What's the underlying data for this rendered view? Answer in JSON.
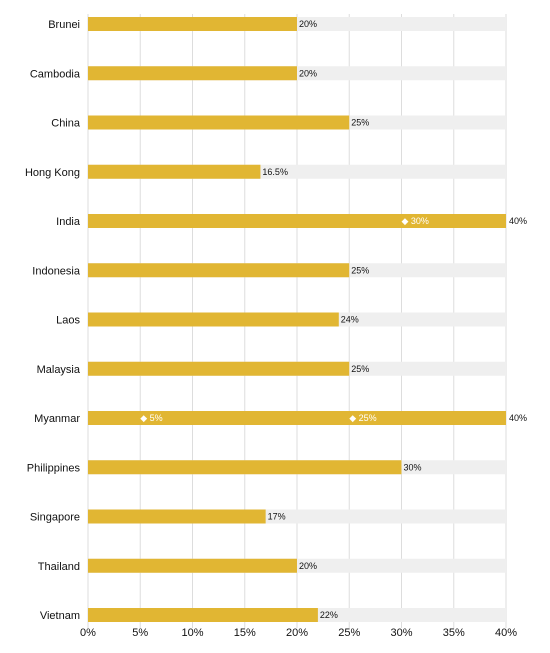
{
  "chart_data": {
    "type": "bar",
    "orientation": "horizontal",
    "title": "",
    "xlabel": "",
    "ylabel": "",
    "xlim": [
      0,
      40
    ],
    "grid": true,
    "legend": "none",
    "x_ticks": [
      "0%",
      "5%",
      "10%",
      "15%",
      "20%",
      "25%",
      "30%",
      "35%",
      "40%"
    ],
    "colors": {
      "bar": "#E1B633",
      "track": "#EFEFEF",
      "grid": "#DDDDDD",
      "annotation_text": "#FFFFFF"
    },
    "rows": [
      {
        "category": "Brunei",
        "value": 20,
        "label": "20%",
        "max": 40,
        "max_label": "",
        "annotations": []
      },
      {
        "category": "Cambodia",
        "value": 20,
        "label": "20%",
        "max": 40,
        "max_label": "",
        "annotations": []
      },
      {
        "category": "China",
        "value": 25,
        "label": "25%",
        "max": 40,
        "max_label": "",
        "annotations": []
      },
      {
        "category": "Hong Kong",
        "value": 16.5,
        "label": "16.5%",
        "max": 40,
        "max_label": "",
        "annotations": []
      },
      {
        "category": "India",
        "value": 40,
        "label": "",
        "max": 40,
        "max_label": "40%",
        "annotations": [
          {
            "value": 30,
            "label": "◆ 30%"
          }
        ]
      },
      {
        "category": "Indonesia",
        "value": 25,
        "label": "25%",
        "max": 40,
        "max_label": "",
        "annotations": []
      },
      {
        "category": "Laos",
        "value": 24,
        "label": "24%",
        "max": 40,
        "max_label": "",
        "annotations": []
      },
      {
        "category": "Malaysia",
        "value": 25,
        "label": "25%",
        "max": 40,
        "max_label": "",
        "annotations": []
      },
      {
        "category": "Myanmar",
        "value": 40,
        "label": "",
        "max": 40,
        "max_label": "40%",
        "annotations": [
          {
            "value": 5,
            "label": "◆ 5%"
          },
          {
            "value": 25,
            "label": "◆ 25%"
          }
        ]
      },
      {
        "category": "Philippines",
        "value": 30,
        "label": "30%",
        "max": 40,
        "max_label": "",
        "annotations": []
      },
      {
        "category": "Singapore",
        "value": 17,
        "label": "17%",
        "max": 40,
        "max_label": "",
        "annotations": []
      },
      {
        "category": "Thailand",
        "value": 20,
        "label": "20%",
        "max": 40,
        "max_label": "",
        "annotations": []
      },
      {
        "category": "Vietnam",
        "value": 22,
        "label": "22%",
        "max": 40,
        "max_label": "",
        "annotations": []
      }
    ]
  }
}
